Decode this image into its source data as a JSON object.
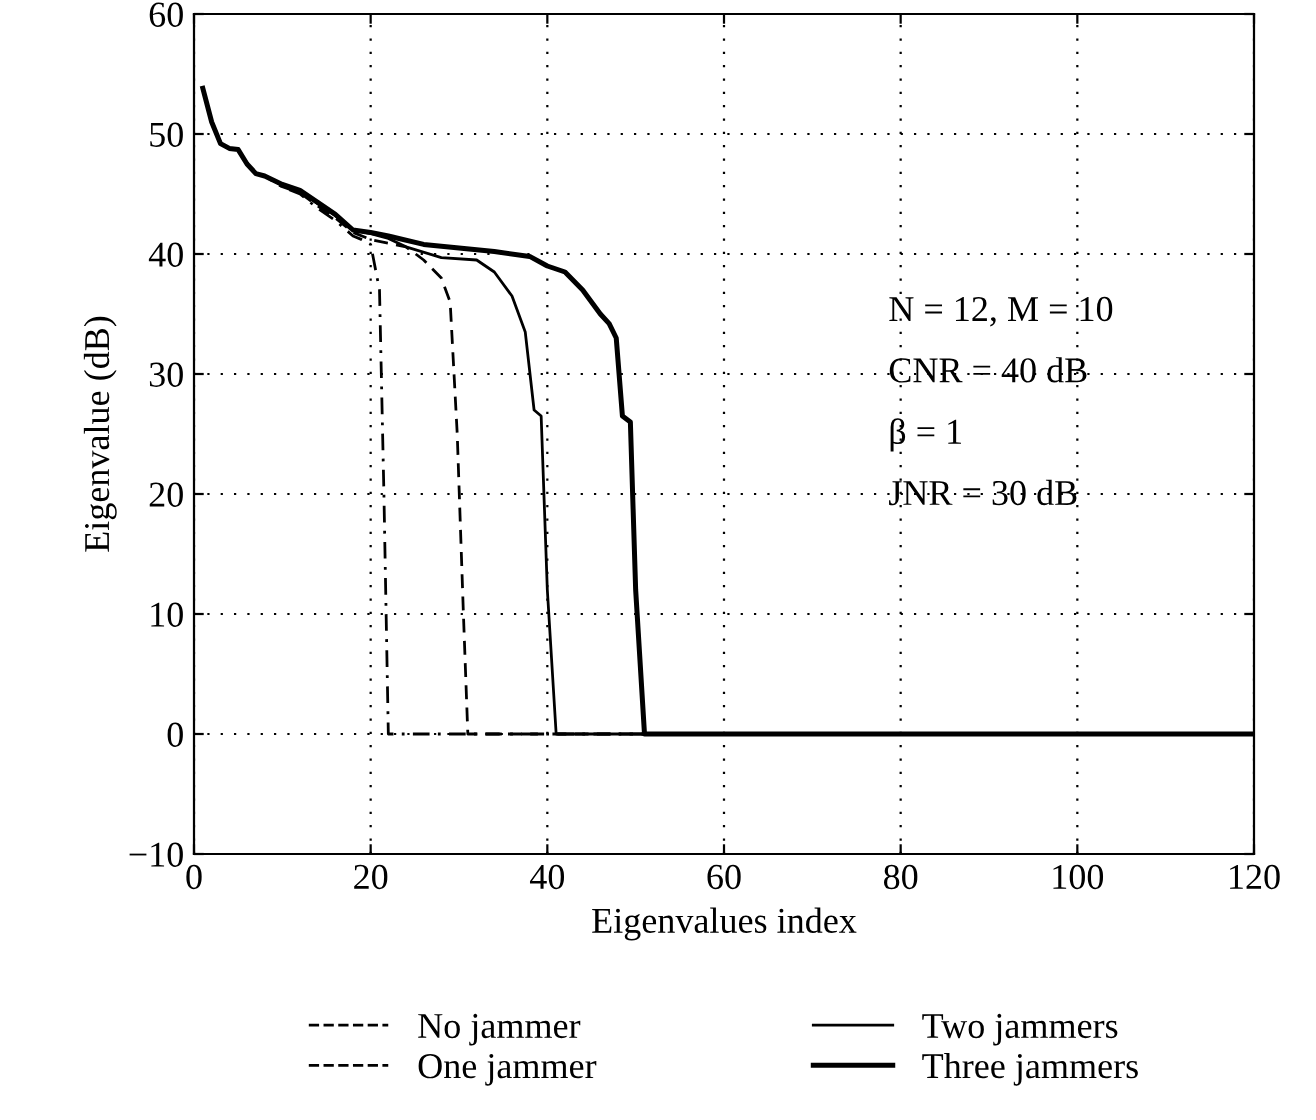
{
  "chart_data": {
    "type": "line",
    "xlabel": "Eigenvalues index",
    "ylabel": "Eigenvalue (dB)",
    "xlim": [
      0,
      120
    ],
    "ylim": [
      -10,
      60
    ],
    "xticks": [
      0,
      20,
      40,
      60,
      80,
      100,
      120
    ],
    "yticks": [
      -10,
      0,
      10,
      20,
      30,
      40,
      50,
      60
    ],
    "grid": true,
    "legend": "bottom",
    "marker": "none",
    "annotations": [
      {
        "text": "N = 12, M = 10"
      },
      {
        "text": "CNR = 40 dB"
      },
      {
        "text": "β = 1"
      },
      {
        "text": "JNR = 30 dB"
      }
    ],
    "series": [
      {
        "name": "No jammer",
        "color": "#000000",
        "line_style": "dashdot",
        "x": [
          1,
          2,
          3,
          4,
          5,
          6,
          7,
          8,
          10,
          12,
          14,
          16,
          18,
          19,
          20,
          21,
          21.5,
          22,
          120
        ],
        "values": [
          53.8,
          51,
          49.2,
          48.8,
          48.7,
          47.5,
          46.7,
          46.5,
          45.6,
          45,
          43.8,
          42.8,
          41.5,
          41.2,
          40.8,
          37,
          20,
          0,
          0
        ]
      },
      {
        "name": "One jammer",
        "color": "#000000",
        "line_style": "dashed",
        "x": [
          1,
          2,
          3,
          4,
          5,
          6,
          7,
          8,
          10,
          12,
          14,
          16,
          18,
          20,
          22,
          24,
          26,
          28,
          29,
          29.8,
          30.5,
          31,
          120
        ],
        "values": [
          53.8,
          51,
          49.2,
          48.8,
          48.7,
          47.5,
          46.7,
          46.5,
          45.6,
          45.1,
          44,
          43,
          41.8,
          41.2,
          40.9,
          40.6,
          39.5,
          38,
          36,
          25,
          10,
          0,
          0
        ]
      },
      {
        "name": "Two jammers",
        "color": "#000000",
        "line_style": "solid",
        "x": [
          1,
          2,
          3,
          4,
          5,
          6,
          7,
          8,
          10,
          12,
          14,
          16,
          18,
          20,
          22,
          24,
          28,
          32,
          34,
          36,
          37.5,
          38.5,
          39.3,
          40,
          41,
          120
        ],
        "values": [
          53.8,
          51,
          49.2,
          48.8,
          48.7,
          47.5,
          46.7,
          46.5,
          45.7,
          45.2,
          44.2,
          43.2,
          42,
          41.7,
          41.3,
          40.6,
          39.7,
          39.5,
          38.5,
          36.5,
          33.5,
          27,
          26.5,
          12,
          0,
          0
        ]
      },
      {
        "name": "Three jammers",
        "color": "#000000",
        "line_style": "solid",
        "x": [
          1,
          2,
          3,
          4,
          5,
          6,
          7,
          8,
          10,
          12,
          14,
          16,
          18,
          20,
          22,
          26,
          30,
          34,
          38,
          40,
          42,
          44,
          46,
          47,
          47.8,
          48.5,
          49.4,
          50,
          51,
          120
        ],
        "values": [
          53.8,
          51,
          49.2,
          48.8,
          48.7,
          47.5,
          46.7,
          46.5,
          45.8,
          45.3,
          44.3,
          43.3,
          42,
          41.8,
          41.5,
          40.8,
          40.5,
          40.2,
          39.8,
          39,
          38.5,
          37,
          35,
          34.2,
          33,
          26.5,
          26,
          12,
          0,
          0
        ]
      }
    ]
  }
}
